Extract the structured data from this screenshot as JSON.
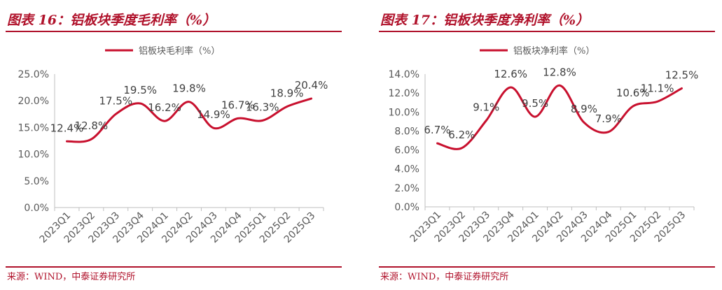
{
  "charts": {
    "left": {
      "title": "图表 16：铝板块季度毛利率（%）",
      "source": "来源：WIND，中泰证券研究所"
    },
    "right": {
      "title": "图表 17：铝板块季度净利率（%）",
      "source": "来源：WIND，中泰证券研究所"
    }
  },
  "colors": {
    "accent": "#b0122b",
    "line": "#c8102e",
    "axis": "#bfbfbf",
    "text": "#595959"
  },
  "chart_data": [
    {
      "type": "line",
      "title": "图表 16：铝板块季度毛利率（%）",
      "categories": [
        "2023Q1",
        "2023Q2",
        "2023Q3",
        "2023Q4",
        "2024Q1",
        "2024Q2",
        "2024Q3",
        "2024Q4",
        "2025Q1",
        "2025Q2",
        "2025Q3"
      ],
      "series": [
        {
          "name": "铝板块毛利率（%）",
          "values": [
            12.4,
            12.8,
            17.5,
            19.5,
            16.2,
            19.8,
            14.9,
            16.7,
            16.3,
            18.9,
            20.4
          ]
        }
      ],
      "data_labels": [
        "12.4%",
        "12.8%",
        "17.5%",
        "19.5%",
        "16.2%",
        "19.8%",
        "14.9%",
        "16.7%",
        "16.3%",
        "18.9%",
        "20.4%"
      ],
      "yticks": [
        "0.0%",
        "5.0%",
        "10.0%",
        "15.0%",
        "20.0%",
        "25.0%"
      ],
      "ylim": [
        0,
        25
      ],
      "legend": "top-left",
      "xlabel": "",
      "ylabel": ""
    },
    {
      "type": "line",
      "title": "图表 17：铝板块季度净利率（%）",
      "categories": [
        "2023Q1",
        "2023Q2",
        "2023Q3",
        "2023Q4",
        "2024Q1",
        "2024Q2",
        "2024Q3",
        "2024Q4",
        "2025Q1",
        "2025Q2",
        "2025Q3"
      ],
      "series": [
        {
          "name": "铝板块净利率（%）",
          "values": [
            6.7,
            6.2,
            9.1,
            12.6,
            9.5,
            12.8,
            8.9,
            7.9,
            10.6,
            11.1,
            12.5
          ]
        }
      ],
      "data_labels": [
        "6.7%",
        "6.2%",
        "9.1%",
        "12.6%",
        "9.5%",
        "12.8%",
        "8.9%",
        "7.9%",
        "10.6%",
        "11.1%",
        "12.5%"
      ],
      "yticks": [
        "0.0%",
        "2.0%",
        "4.0%",
        "6.0%",
        "8.0%",
        "10.0%",
        "12.0%",
        "14.0%"
      ],
      "ylim": [
        0,
        14
      ],
      "legend": "top-left",
      "xlabel": "",
      "ylabel": ""
    }
  ]
}
